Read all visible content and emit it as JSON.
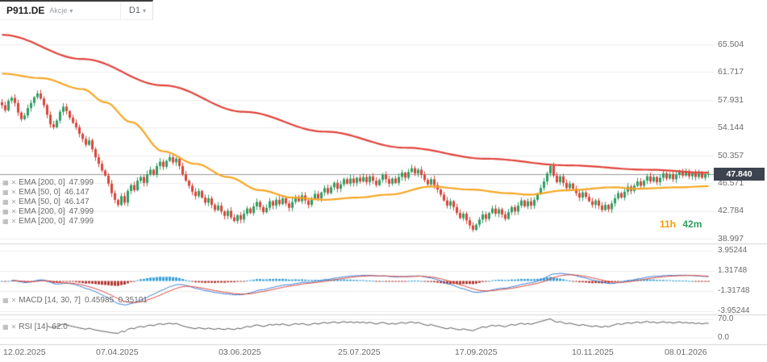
{
  "toolbar": {
    "symbol": "P911.DE",
    "instrument_type": "Akcje",
    "timeframe": "D1"
  },
  "indicators": {
    "rows": [
      {
        "label": "EMA [200, 0]",
        "value": "47.999"
      },
      {
        "label": "EMA [50, 0]",
        "value": "46.147"
      },
      {
        "label": "EMA [50, 0]",
        "value": "46.147"
      },
      {
        "label": "EMA [200, 0]",
        "value": "47.999"
      },
      {
        "label": "EMA [200, 0]",
        "value": "47.999"
      }
    ],
    "macd": {
      "label": "MACD [14, 30, 7]",
      "value": "0.45985  0.35101"
    },
    "rsi": {
      "label": "RSI [14]",
      "value": "62.0"
    }
  },
  "countdown": {
    "hours": "11h",
    "minutes": "42m"
  },
  "price_tag": "47.840",
  "chart_data": {
    "type": "candlestick",
    "title": "P911.DE D1 candlestick chart with EMA(200), EMA(50), MACD(14,30,7) and RSI(14)",
    "symbol": "P911.DE",
    "timeframe": "D1",
    "current_price": 47.84,
    "y_axis_labels": [
      "65.504",
      "61.717",
      "57.931",
      "54.144",
      "50.357",
      "46.571",
      "42.784",
      "38.997"
    ],
    "x_axis_labels": [
      "12.02.2025",
      "07.04.2025",
      "03.06.2025",
      "25.07.2025",
      "17.09.2025",
      "10.11.2025",
      "08.01.2026"
    ],
    "macd_axis_labels": [
      "3.95244",
      "1.31748",
      "-1.31748",
      "-3.95244"
    ],
    "rsi_axis_labels": [
      "70.0",
      "0.0"
    ],
    "closes": [
      57.2,
      56.5,
      57.8,
      58.2,
      57.5,
      56.2,
      55.3,
      55.8,
      56.8,
      57.5,
      58.3,
      58.8,
      58.1,
      57.2,
      55.9,
      54.6,
      54.2,
      55.1,
      56.3,
      57.0,
      56.4,
      55.5,
      54.8,
      54.2,
      53.3,
      52.6,
      51.8,
      52.4,
      51.2,
      50.1,
      49.2,
      48.3,
      47.6,
      46.5,
      45.2,
      44.3,
      43.6,
      44.8,
      43.9,
      45.5,
      46.3,
      45.6,
      46.9,
      47.4,
      46.6,
      47.8,
      48.4,
      47.7,
      48.9,
      49.5,
      48.8,
      49.6,
      50.1,
      49.4,
      49.9,
      48.9,
      47.8,
      46.9,
      46.2,
      45.4,
      44.8,
      45.5,
      44.6,
      43.9,
      44.5,
      43.6,
      42.9,
      43.5,
      42.7,
      42.1,
      42.8,
      41.9,
      41.4,
      42.2,
      41.6,
      42.4,
      43.1,
      42.5,
      43.4,
      44.0,
      43.3,
      42.6,
      43.2,
      44.1,
      43.5,
      44.3,
      43.7,
      44.5,
      43.8,
      43.2,
      44.0,
      44.7,
      44.1,
      44.9,
      44.2,
      43.6,
      44.4,
      45.1,
      44.5,
      45.3,
      45.9,
      45.2,
      46.0,
      46.6,
      45.8,
      46.4,
      47.1,
      46.5,
      47.2,
      46.6,
      47.3,
      46.8,
      47.4,
      46.7,
      47.5,
      46.9,
      46.3,
      47.0,
      47.7,
      47.1,
      46.5,
      47.2,
      46.6,
      47.4,
      48.0,
      47.3,
      48.1,
      48.6,
      47.9,
      48.4,
      47.7,
      47.0,
      46.4,
      47.1,
      46.3,
      45.7,
      45.0,
      44.2,
      43.5,
      44.1,
      43.3,
      42.5,
      41.8,
      42.4,
      41.5,
      40.8,
      40.2,
      40.9,
      41.6,
      42.3,
      41.7,
      42.5,
      43.1,
      42.4,
      43.0,
      42.3,
      41.7,
      42.6,
      43.3,
      42.7,
      43.5,
      44.2,
      43.4,
      44.1,
      43.5,
      44.3,
      45.1,
      45.9,
      46.8,
      47.9,
      48.9,
      47.6,
      46.7,
      47.5,
      46.6,
      45.9,
      46.5,
      45.8,
      45.2,
      44.6,
      45.3,
      44.7,
      44.1,
      43.6,
      44.2,
      43.5,
      42.9,
      43.6,
      43.0,
      43.8,
      44.5,
      45.2,
      44.6,
      45.4,
      46.1,
      45.5,
      46.2,
      46.8,
      46.2,
      46.9,
      47.5,
      46.8,
      47.4,
      46.7,
      47.3,
      47.9,
      47.2,
      47.8,
      47.1,
      47.7,
      48.2,
      47.6,
      48.1,
      47.5,
      48.0,
      47.4,
      47.9,
      47.3,
      47.8,
      47.84
    ],
    "ema200_anchors": [
      [
        0,
        66.8
      ],
      [
        25,
        63.5
      ],
      [
        50,
        59.9
      ],
      [
        75,
        56.3
      ],
      [
        100,
        53.6
      ],
      [
        125,
        51.4
      ],
      [
        150,
        49.9
      ],
      [
        175,
        49.0
      ],
      [
        200,
        48.4
      ],
      [
        219,
        48.0
      ]
    ],
    "ema50_anchors": [
      [
        0,
        61.5
      ],
      [
        12,
        60.9
      ],
      [
        25,
        59.4
      ],
      [
        32,
        57.6
      ],
      [
        40,
        54.9
      ],
      [
        50,
        50.9
      ],
      [
        60,
        49.2
      ],
      [
        70,
        47.4
      ],
      [
        80,
        45.6
      ],
      [
        90,
        44.6
      ],
      [
        100,
        44.3
      ],
      [
        110,
        44.6
      ],
      [
        120,
        45.0
      ],
      [
        133,
        46.1
      ],
      [
        145,
        45.7
      ],
      [
        157,
        45.2
      ],
      [
        163,
        45.0
      ],
      [
        175,
        45.6
      ],
      [
        190,
        46.0
      ],
      [
        196,
        45.8
      ],
      [
        210,
        46.0
      ],
      [
        219,
        46.15
      ]
    ],
    "colors": {
      "up": "#2f9e63",
      "down": "#d9453a",
      "ema200": "#e0433a",
      "ema50": "#f5a623",
      "macd_pos": "#3aa0d8",
      "macd_neg": "#b23b34",
      "macd_line": "#3a7bd5",
      "signal_line": "#d9453a",
      "rsi_line": "#555555",
      "grid": "#ececec",
      "price_line": "#999999",
      "price_tag_bg": "#3d4450"
    }
  }
}
